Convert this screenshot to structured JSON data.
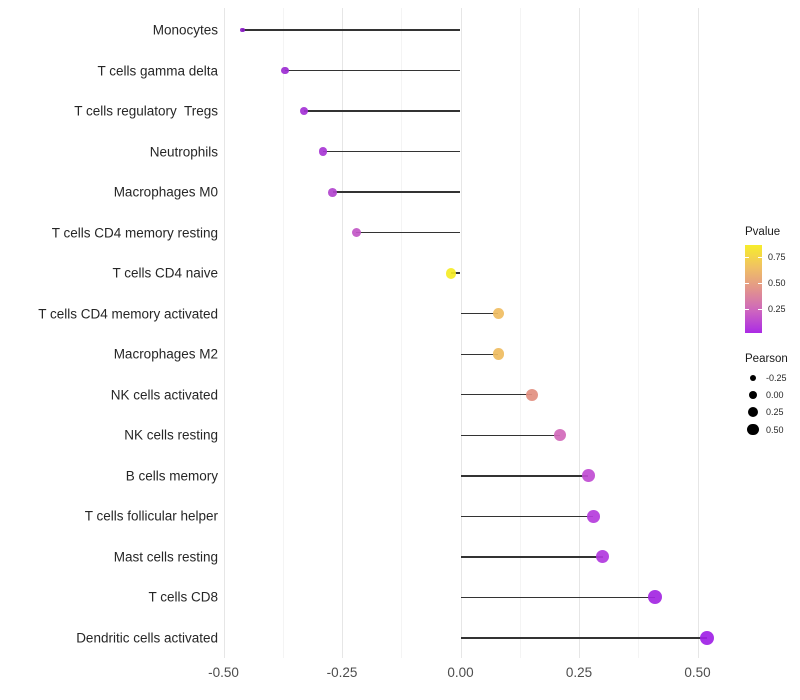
{
  "chart_data": {
    "type": "scatter",
    "subtype": "lollipop",
    "title": "",
    "xlabel": "",
    "ylabel": "",
    "xlim": [
      -0.55,
      0.57
    ],
    "grid": "white background, light gray major and minor vertical gridlines",
    "legend_position": "right",
    "x_axis": {
      "tick_labels": [
        "-0.50",
        "-0.25",
        "0.00",
        "0.25",
        "0.50"
      ],
      "tick_values": [
        -0.5,
        -0.25,
        0,
        0.25,
        0.5
      ],
      "minor_tick_values": [
        -0.375,
        -0.125,
        0.125,
        0.375
      ]
    },
    "categories": [
      "Monocytes",
      "T cells gamma delta",
      "T cells regulatory  Tregs",
      "Neutrophils",
      "Macrophages M0",
      "T cells CD4 memory resting",
      "T cells CD4 naive",
      "T cells CD4 memory activated",
      "Macrophages M2",
      "NK cells activated",
      "NK cells resting",
      "B cells memory",
      "T cells follicular helper",
      "Mast cells resting",
      "T cells CD8",
      "Dendritic cells activated"
    ],
    "points": [
      {
        "label": "Monocytes",
        "pearson": -0.46,
        "pvalue_est": 0.03,
        "color": "#8B1CC6",
        "radius": 2.2
      },
      {
        "label": "T cells gamma delta",
        "pearson": -0.37,
        "pvalue_est": 0.07,
        "color": "#9C2BD2",
        "radius": 3.7
      },
      {
        "label": "T cells regulatory  Tregs",
        "pearson": -0.33,
        "pvalue_est": 0.1,
        "color": "#A432D6",
        "radius": 4.0
      },
      {
        "label": "Neutrophils",
        "pearson": -0.29,
        "pvalue_est": 0.13,
        "color": "#A837D5",
        "radius": 4.2
      },
      {
        "label": "Macrophages M0",
        "pearson": -0.27,
        "pvalue_est": 0.17,
        "color": "#B244CE",
        "radius": 4.4
      },
      {
        "label": "T cells CD4 memory resting",
        "pearson": -0.22,
        "pvalue_est": 0.3,
        "color": "#C156C6",
        "radius": 4.7
      },
      {
        "label": "T cells CD4 naive",
        "pearson": -0.02,
        "pvalue_est": 0.85,
        "color": "#F5EB25",
        "radius": 5.4
      },
      {
        "label": "T cells CD4 memory activated",
        "pearson": 0.08,
        "pvalue_est": 0.66,
        "color": "#F0BD62",
        "radius": 5.7
      },
      {
        "label": "Macrophages M2",
        "pearson": 0.08,
        "pvalue_est": 0.65,
        "color": "#EFBC60",
        "radius": 5.8
      },
      {
        "label": "NK cells activated",
        "pearson": 0.15,
        "pvalue_est": 0.5,
        "color": "#E28F80",
        "radius": 6.0
      },
      {
        "label": "NK cells resting",
        "pearson": 0.21,
        "pvalue_est": 0.36,
        "color": "#D169BA",
        "radius": 6.2
      },
      {
        "label": "B cells memory",
        "pearson": 0.27,
        "pvalue_est": 0.26,
        "color": "#C04CD2",
        "radius": 6.4
      },
      {
        "label": "T cells follicular helper",
        "pearson": 0.28,
        "pvalue_est": 0.23,
        "color": "#B53CDC",
        "radius": 6.4
      },
      {
        "label": "Mast cells resting",
        "pearson": 0.3,
        "pvalue_est": 0.21,
        "color": "#B138DE",
        "radius": 6.5
      },
      {
        "label": "T cells CD8",
        "pearson": 0.41,
        "pvalue_est": 0.1,
        "color": "#A326E2",
        "radius": 7.0
      },
      {
        "label": "Dendritic cells activated",
        "pearson": 0.52,
        "pvalue_est": 0.06,
        "color": "#A021E6",
        "radius": 7.4
      }
    ],
    "legend_pvalue": {
      "title": "Pvalue",
      "tick_labels": [
        "0.75",
        "0.50",
        "0.25"
      ],
      "tick_values": [
        0.75,
        0.5,
        0.25
      ],
      "bar_top_value": 0.87,
      "bar_bottom_value": 0.02,
      "gradient_stops": [
        "#F7ED2B",
        "#F0C163",
        "#E2948C",
        "#CD65BF",
        "#AB2BE5"
      ]
    },
    "legend_pearson": {
      "title": "Pearson",
      "items": [
        {
          "label": "-0.25",
          "radius": 3.3
        },
        {
          "label": "0.00",
          "radius": 4.3
        },
        {
          "label": "0.25",
          "radius": 5.0
        },
        {
          "label": "0.50",
          "radius": 5.7
        }
      ],
      "dot_color": "#000000"
    },
    "segment_color": "#333333"
  }
}
